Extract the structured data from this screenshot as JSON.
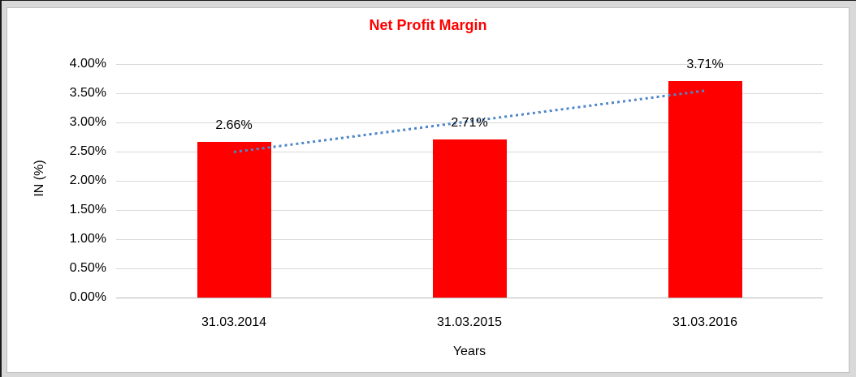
{
  "frame": {
    "outer_background": "#d9d9d9",
    "inner_background": "#ffffff",
    "inner_border_color": "#c0c0c0",
    "edge_line_color": "#1a1a1a"
  },
  "chart_data": {
    "type": "bar",
    "title": "Net Profit Margin",
    "title_color": "#ff0000",
    "xlabel": "Years",
    "ylabel": "IN (%)",
    "categories": [
      "31.03.2014",
      "31.03.2015",
      "31.03.2016"
    ],
    "values": [
      2.66,
      2.71,
      3.71
    ],
    "value_labels": [
      "2.66%",
      "2.71%",
      "3.71%"
    ],
    "bar_color": "#ff0000",
    "ylim": [
      0,
      4
    ],
    "ytick_step": 0.5,
    "ytick_labels": [
      "0.00%",
      "0.50%",
      "1.00%",
      "1.50%",
      "2.00%",
      "2.50%",
      "3.00%",
      "3.50%",
      "4.00%"
    ],
    "grid": true,
    "gridline_color": "#d9d9d9",
    "axis_line_color": "#b7b7b7",
    "text_color": "#000000",
    "legend": "none",
    "trendline": {
      "type": "linear",
      "style": "dotted",
      "color": "#4f87c8",
      "start_value": 2.5,
      "end_value": 3.55
    }
  }
}
